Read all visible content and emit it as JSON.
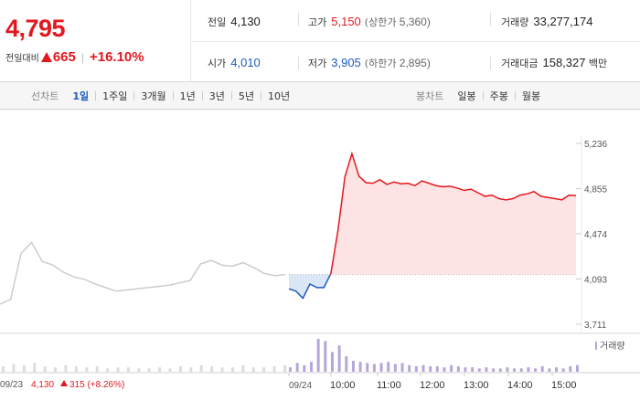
{
  "quote": {
    "price": "4,795",
    "change_label": "전일대비",
    "change_abs": "665",
    "change_pct": "+16.10%"
  },
  "stats": {
    "prev_close": {
      "label": "전일",
      "value": "4,130"
    },
    "high": {
      "label": "고가",
      "value": "5,150",
      "sub_label": "(상한가",
      "sub_value": "5,360)"
    },
    "volume": {
      "label": "거래량",
      "value": "33,277,174"
    },
    "open": {
      "label": "시가",
      "value": "4,010"
    },
    "low": {
      "label": "저가",
      "value": "3,905",
      "sub_label": "(하한가",
      "sub_value": "2,895)"
    },
    "trade_value": {
      "label": "거래대금",
      "value": "158,327",
      "unit": "백만"
    }
  },
  "line_chart_tabs": {
    "title": "선차트",
    "items": [
      "1일",
      "1주일",
      "3개월",
      "1년",
      "3년",
      "5년",
      "10년"
    ],
    "active_index": 0
  },
  "candle_chart_tabs": {
    "title": "봉차트",
    "items": [
      "일봉",
      "주봉",
      "월봉"
    ]
  },
  "colors": {
    "up": "#e3181f",
    "down": "#1e5bbf",
    "up_fill": "#fde3e4",
    "down_fill": "#dbe6f6",
    "prev_line": "#cccccc",
    "volume": "#b7a6d9"
  },
  "chart_data": {
    "type": "line",
    "y_ticks": [
      "5,236",
      "4,855",
      "4,474",
      "4,093",
      "3,711"
    ],
    "y_tick_values": [
      5236,
      4855,
      4474,
      4093,
      3711
    ],
    "ylim": [
      3711,
      5236
    ],
    "baseline": 4130,
    "x_labels": [
      "09/24",
      "10:00",
      "11:00",
      "12:00",
      "13:00",
      "14:00",
      "15:00"
    ],
    "prev_day": {
      "label": "09/23",
      "close": "4,130",
      "change": "315",
      "change_pct": "(+8.26%)"
    },
    "prev_day_series": [
      3880,
      3920,
      4310,
      4400,
      4240,
      4210,
      4150,
      4110,
      4090,
      4050,
      4020,
      3990,
      4000,
      4010,
      4020,
      4030,
      4040,
      4060,
      4080,
      4220,
      4250,
      4210,
      4200,
      4230,
      4190,
      4140,
      4120,
      4130
    ],
    "today_series": [
      4010,
      3990,
      3930,
      4050,
      4020,
      4020,
      4140,
      4500,
      4955,
      5150,
      4960,
      4905,
      4900,
      4930,
      4890,
      4910,
      4895,
      4900,
      4880,
      4920,
      4900,
      4880,
      4870,
      4875,
      4860,
      4840,
      4850,
      4820,
      4790,
      4800,
      4770,
      4760,
      4770,
      4800,
      4810,
      4830,
      4790,
      4780,
      4770,
      4760,
      4800,
      4795
    ],
    "volume_label": "거래량",
    "prev_volume": [
      5,
      7,
      6,
      8,
      5,
      4,
      6,
      5,
      4,
      5,
      3,
      4,
      4,
      3,
      3,
      4,
      3,
      5,
      4,
      6,
      5,
      4,
      4,
      6,
      4,
      4,
      5,
      6
    ],
    "today_volume": [
      4,
      8,
      6,
      9,
      30,
      28,
      18,
      24,
      14,
      10,
      9,
      8,
      7,
      8,
      9,
      7,
      8,
      6,
      5,
      6,
      5,
      5,
      4,
      6,
      5,
      4,
      4,
      3,
      4,
      3,
      3,
      4,
      3,
      3,
      4,
      3,
      5,
      3,
      4,
      3,
      5,
      6
    ]
  }
}
